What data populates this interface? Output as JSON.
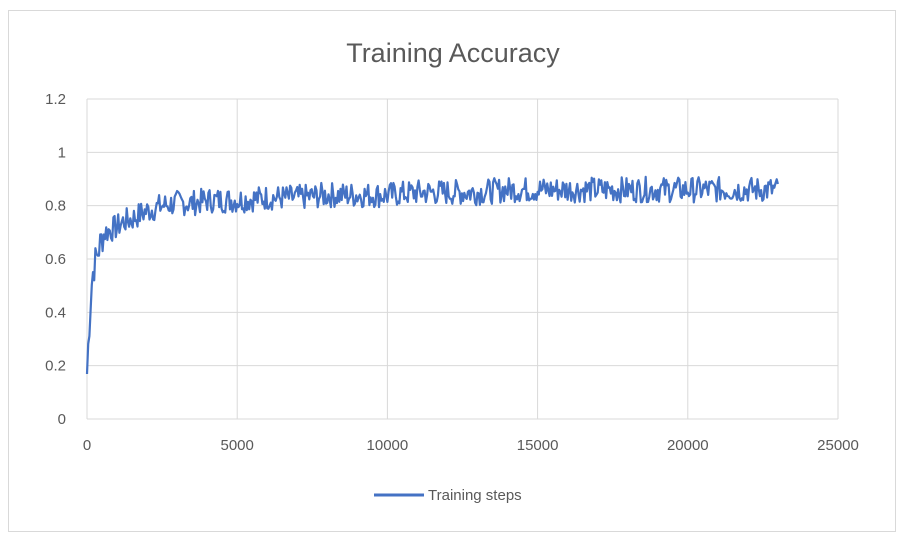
{
  "chart_data": {
    "type": "line",
    "title": "Training Accuracy",
    "xlabel": "",
    "ylabel": "",
    "xlim": [
      0,
      25000
    ],
    "ylim": [
      0,
      1.2
    ],
    "x_ticks": [
      0,
      5000,
      10000,
      15000,
      20000,
      25000
    ],
    "y_ticks": [
      0,
      0.2,
      0.4,
      0.6,
      0.8,
      1,
      1.2
    ],
    "grid": true,
    "legend_position": "bottom",
    "series": [
      {
        "name": "Training steps",
        "color": "#4472c4",
        "x": [
          0,
          50,
          100,
          150,
          200,
          250,
          300,
          400,
          500,
          600,
          800,
          1000,
          1200,
          1500,
          1800,
          2000,
          2500,
          3000,
          3500,
          4000,
          4500,
          5000,
          6000,
          7000,
          8000,
          9000,
          10000,
          11000,
          12000,
          13000,
          14000,
          15000,
          16000,
          17000,
          18000,
          19000,
          20000,
          21000,
          22000,
          23000
        ],
        "y": [
          0.17,
          0.3,
          0.4,
          0.5,
          0.55,
          0.58,
          0.6,
          0.64,
          0.68,
          0.7,
          0.71,
          0.72,
          0.74,
          0.75,
          0.77,
          0.78,
          0.8,
          0.81,
          0.81,
          0.82,
          0.82,
          0.82,
          0.83,
          0.83,
          0.84,
          0.84,
          0.84,
          0.85,
          0.85,
          0.85,
          0.86,
          0.86,
          0.86,
          0.86,
          0.86,
          0.86,
          0.86,
          0.86,
          0.86,
          0.86
        ],
        "noise": 0.04,
        "peak_y": 0.95,
        "x_end": 23000
      }
    ]
  }
}
